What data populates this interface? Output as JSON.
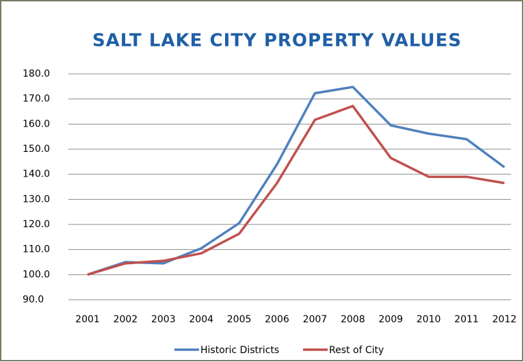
{
  "chart_data": {
    "type": "line",
    "title": "SALT LAKE CITY PROPERTY VALUES",
    "categories": [
      "2001",
      "2002",
      "2003",
      "2004",
      "2005",
      "2006",
      "2007",
      "2008",
      "2009",
      "2010",
      "2011",
      "2012"
    ],
    "series": [
      {
        "name": "Historic Districts",
        "color": "#4f81bd",
        "values": [
          100,
          105,
          104.5,
          110.5,
          120.5,
          144,
          172.3,
          174.8,
          159.5,
          156.2,
          154,
          142.8
        ]
      },
      {
        "name": "Rest of City",
        "color": "#c0504d",
        "values": [
          100,
          104.5,
          105.5,
          108.5,
          116.3,
          136.5,
          161.7,
          167.2,
          146.5,
          139,
          139,
          136.5
        ]
      }
    ],
    "ylim": [
      90,
      180
    ],
    "yticks": [
      {
        "value": 90,
        "label": "90.0"
      },
      {
        "value": 100,
        "label": "100.0"
      },
      {
        "value": 110,
        "label": "110.0"
      },
      {
        "value": 120,
        "label": "120.0"
      },
      {
        "value": 130,
        "label": "130.0"
      },
      {
        "value": 140,
        "label": "140.0"
      },
      {
        "value": 150,
        "label": "150.0"
      },
      {
        "value": 160,
        "label": "160.0"
      },
      {
        "value": 170,
        "label": "170.0"
      },
      {
        "value": 180,
        "label": "180.0"
      }
    ],
    "grid": true,
    "legend": "bottom"
  }
}
